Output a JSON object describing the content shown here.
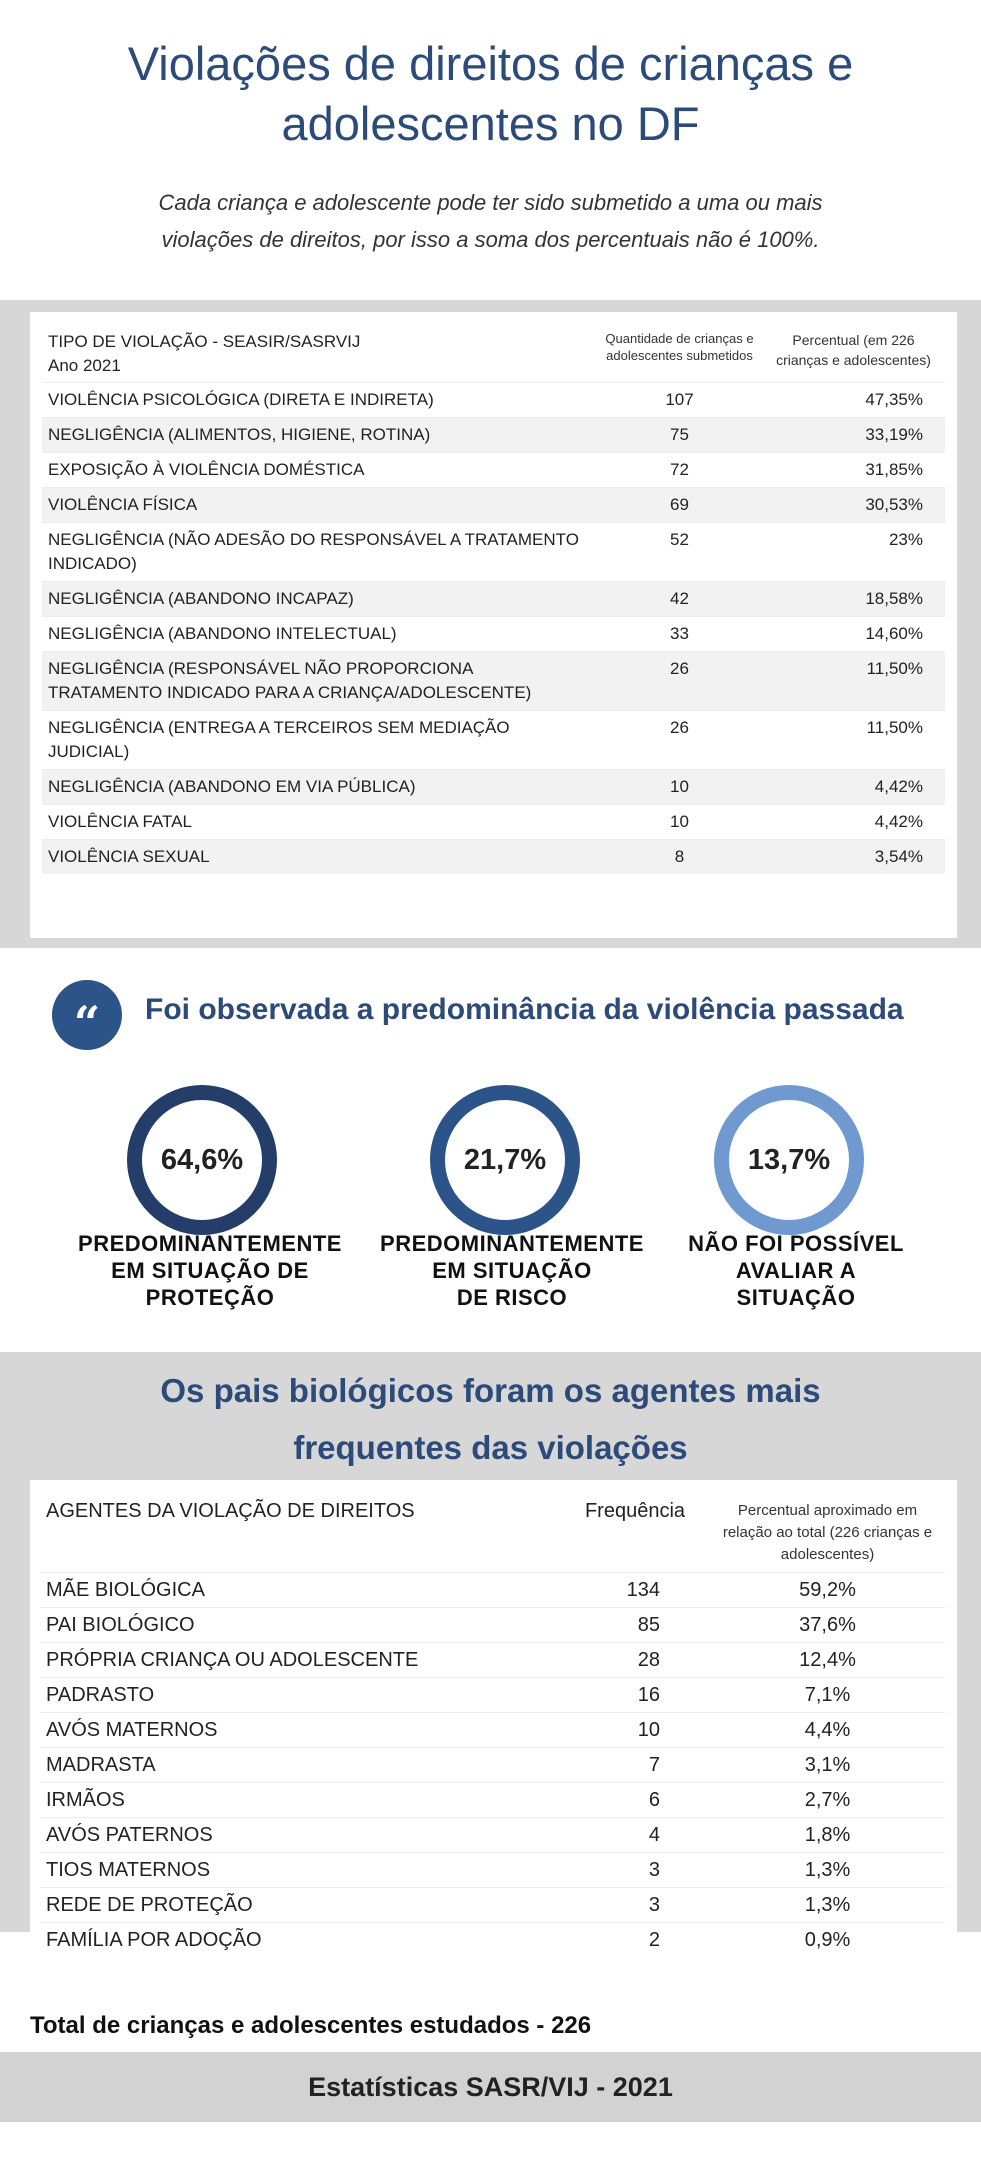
{
  "header": {
    "title_line1": "Violações de direitos de crianças e",
    "title_line2": "adolescentes no DF",
    "subtitle_line1": "Cada criança e adolescente pode ter sido submetido a uma ou mais",
    "subtitle_line2": "violações de direitos, por isso a soma dos percentuais não é 100%."
  },
  "violations_table": {
    "col1_line1": "TIPO DE VIOLAÇÃO - SEASIR/SASRVIJ",
    "col1_line2": "Ano 2021",
    "col2": "Quantidade de crianças e adolescentes submetidos",
    "col3": "Percentual (em 226 crianças e adolescentes)",
    "rows": [
      {
        "type": "VIOLÊNCIA PSICOLÓGICA (DIRETA E INDIRETA)",
        "qty": "107",
        "pct": "47,35%"
      },
      {
        "type": "NEGLIGÊNCIA (ALIMENTOS, HIGIENE, ROTINA)",
        "qty": "75",
        "pct": "33,19%"
      },
      {
        "type": "EXPOSIÇÃO À VIOLÊNCIA DOMÉSTICA",
        "qty": "72",
        "pct": "31,85%"
      },
      {
        "type": "VIOLÊNCIA FÍSICA",
        "qty": "69",
        "pct": "30,53%"
      },
      {
        "type": "NEGLIGÊNCIA (NÃO ADESÃO DO RESPONSÁVEL A TRATAMENTO INDICADO)",
        "qty": "52",
        "pct": "23%"
      },
      {
        "type": "NEGLIGÊNCIA (ABANDONO INCAPAZ)",
        "qty": "42",
        "pct": "18,58%"
      },
      {
        "type": "NEGLIGÊNCIA (ABANDONO INTELECTUAL)",
        "qty": "33",
        "pct": "14,60%"
      },
      {
        "type": "NEGLIGÊNCIA (RESPONSÁVEL NÃO PROPORCIONA TRATAMENTO INDICADO PARA A CRIANÇA/ADOLESCENTE)",
        "qty": "26",
        "pct": "11,50%"
      },
      {
        "type": "NEGLIGÊNCIA (ENTREGA A TERCEIROS SEM MEDIAÇÃO JUDICIAL)",
        "qty": "26",
        "pct": "11,50%"
      },
      {
        "type": "NEGLIGÊNCIA (ABANDONO EM VIA PÚBLICA)",
        "qty": "10",
        "pct": "4,42%"
      },
      {
        "type": "VIOLÊNCIA FATAL",
        "qty": "10",
        "pct": "4,42%"
      },
      {
        "type": "VIOLÊNCIA SEXUAL",
        "qty": "8",
        "pct": "3,54%"
      }
    ]
  },
  "predominance": {
    "quote_icon": "“",
    "heading": "Foi observada a predominância da violência passada",
    "items": [
      {
        "value": "64,6%",
        "l1": "PREDOMINANTEMENTE",
        "l2": "EM SITUAÇÃO DE",
        "l3": "PROTEÇÃO"
      },
      {
        "value": "21,7%",
        "l1": "PREDOMINANTEMENTE",
        "l2": "EM SITUAÇÃO",
        "l3": "DE RISCO"
      },
      {
        "value": "13,7%",
        "l1": "NÃO FOI POSSÍVEL",
        "l2": "AVALIAR A",
        "l3": "SITUAÇÃO"
      }
    ]
  },
  "agents_section": {
    "heading_line1": "Os pais biológicos foram os agentes mais",
    "heading_line2": "frequentes das violações",
    "col1": "AGENTES DA VIOLAÇÃO DE DIREITOS",
    "col2": "Frequência",
    "col3": "Percentual aproximado em relação ao total (226 crianças e adolescentes)",
    "rows": [
      {
        "agent": "MÃE BIOLÓGICA",
        "freq": "134",
        "pct": "59,2%"
      },
      {
        "agent": "PAI BIOLÓGICO",
        "freq": "85",
        "pct": "37,6%"
      },
      {
        "agent": "PRÓPRIA CRIANÇA OU ADOLESCENTE",
        "freq": "28",
        "pct": "12,4%"
      },
      {
        "agent": "PADRASTO",
        "freq": "16",
        "pct": "7,1%"
      },
      {
        "agent": "AVÓS MATERNOS",
        "freq": "10",
        "pct": "4,4%"
      },
      {
        "agent": "MADRASTA",
        "freq": "7",
        "pct": "3,1%"
      },
      {
        "agent": "IRMÃOS",
        "freq": "6",
        "pct": "2,7%"
      },
      {
        "agent": "AVÓS PATERNOS",
        "freq": "4",
        "pct": "1,8%"
      },
      {
        "agent": "TIOS MATERNOS",
        "freq": "3",
        "pct": "1,3%"
      },
      {
        "agent": "REDE DE PROTEÇÃO",
        "freq": "3",
        "pct": "1,3%"
      },
      {
        "agent": "FAMÍLIA POR ADOÇÃO",
        "freq": "2",
        "pct": "0,9%"
      }
    ]
  },
  "footer": {
    "total": "Total de crianças e adolescentes estudados - 226",
    "source": "Estatísticas SASR/VIJ - 2021"
  },
  "colors": {
    "title_blue": "#2c4a7a",
    "ring_dark": "#243e69",
    "ring_mid": "#2c5488",
    "ring_light": "#6f99cf",
    "band_gray": "#d7d7d7"
  }
}
